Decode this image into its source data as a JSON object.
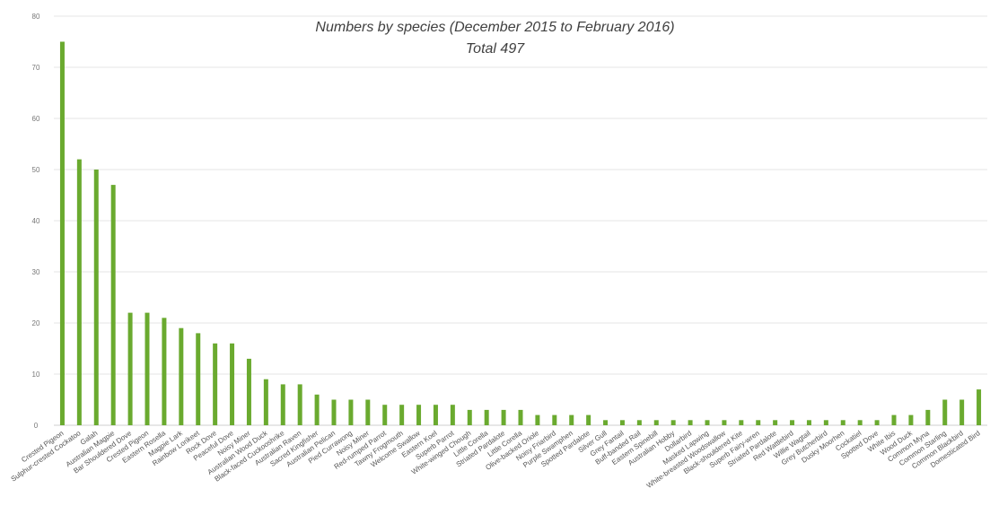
{
  "chart_data": {
    "type": "bar",
    "title": "Numbers by species (December 2015 to February 2016)",
    "subtitle": "Total 497",
    "xlabel": "",
    "ylabel": "",
    "ylim": [
      0,
      80
    ],
    "yticks": [
      0,
      10,
      20,
      30,
      40,
      50,
      60,
      70,
      80
    ],
    "grid": true,
    "legend": "none",
    "bar_color": "#6aaa2f",
    "categories": [
      "Crested Pigeon",
      "Sulphur-crested Cockatoo",
      "Galah",
      "Australian Magpie",
      "Bar Shouldered Dove",
      "Crested Pigeon",
      "Eastern Rosella",
      "Magpie Lark",
      "Rainbow Lorikeet",
      "Rock Dove",
      "Peaceful Dove",
      "Noisy Miner",
      "Australian Wood Duck",
      "Black-faced Cuckooshrike",
      "Australian Raven",
      "Sacred Kingfisher",
      "Australian Pelican",
      "Pied Currawong",
      "Noisy Miner",
      "Red-rumped Parrot",
      "Tawny Frogmouth",
      "Welcome Swallow",
      "Eastern Koel",
      "Superb Parrot",
      "White-winged Chough",
      "Little Corella",
      "Striated Pardalote",
      "Little Corella",
      "Olive-backed Oriole",
      "Noisy Friarbird",
      "Purple Swamphen",
      "Spotted Pardalote",
      "Silver Gull",
      "Grey Fantail",
      "Buff-banded Rail",
      "Eastern Spinebill",
      "Australian Hobby",
      "Dollarbird",
      "Masked Lapwing",
      "White-breasted Woodswallow",
      "Black-shouldered Kite",
      "Superb Fairy-wren",
      "Striated Pardalote",
      "Red Wattlebird",
      "Willie Wagtail",
      "Grey Butcherbird",
      "Dusky Moorhen",
      "Cockatiel",
      "Spotted Dove",
      "White Ibis",
      "Wood Duck",
      "Common Myna",
      "Common Starling",
      "Common Blackbird",
      "Domesticated Bird"
    ],
    "values": [
      75,
      52,
      50,
      47,
      22,
      22,
      21,
      19,
      18,
      16,
      16,
      13,
      9,
      8,
      8,
      6,
      5,
      5,
      5,
      4,
      4,
      4,
      4,
      4,
      3,
      3,
      3,
      3,
      2,
      2,
      2,
      2,
      1,
      1,
      1,
      1,
      1,
      1,
      1,
      1,
      1,
      1,
      1,
      1,
      1,
      1,
      1,
      1,
      1,
      2,
      2,
      3,
      5,
      5,
      7
    ]
  }
}
